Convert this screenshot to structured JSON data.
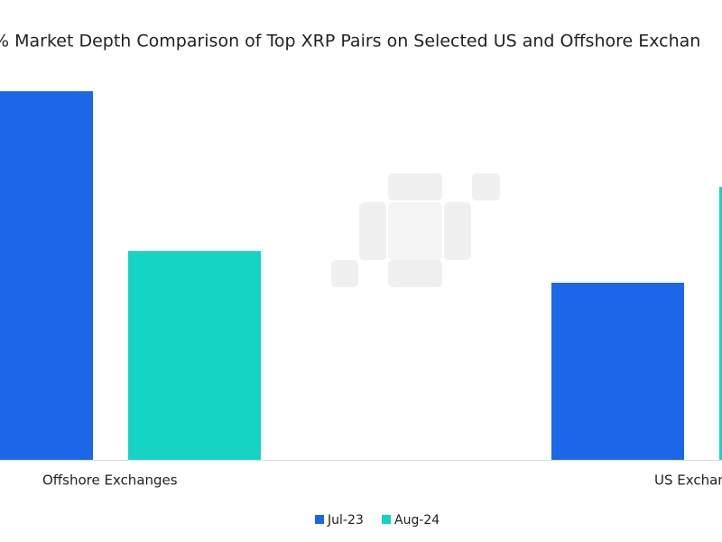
{
  "chart_data": {
    "type": "bar",
    "title": "% Market Depth Comparison of Top XRP Pairs on Selected US and Offshore Exchan",
    "categories": [
      "Offshore Exchanges",
      "US Exchan"
    ],
    "series": [
      {
        "name": "Jul-23",
        "color": "#1b67e8",
        "values": [
          408,
          196
        ]
      },
      {
        "name": "Aug-24",
        "color": "#15d4c4",
        "values": [
          231,
          302
        ]
      }
    ],
    "legend": "bottom"
  }
}
